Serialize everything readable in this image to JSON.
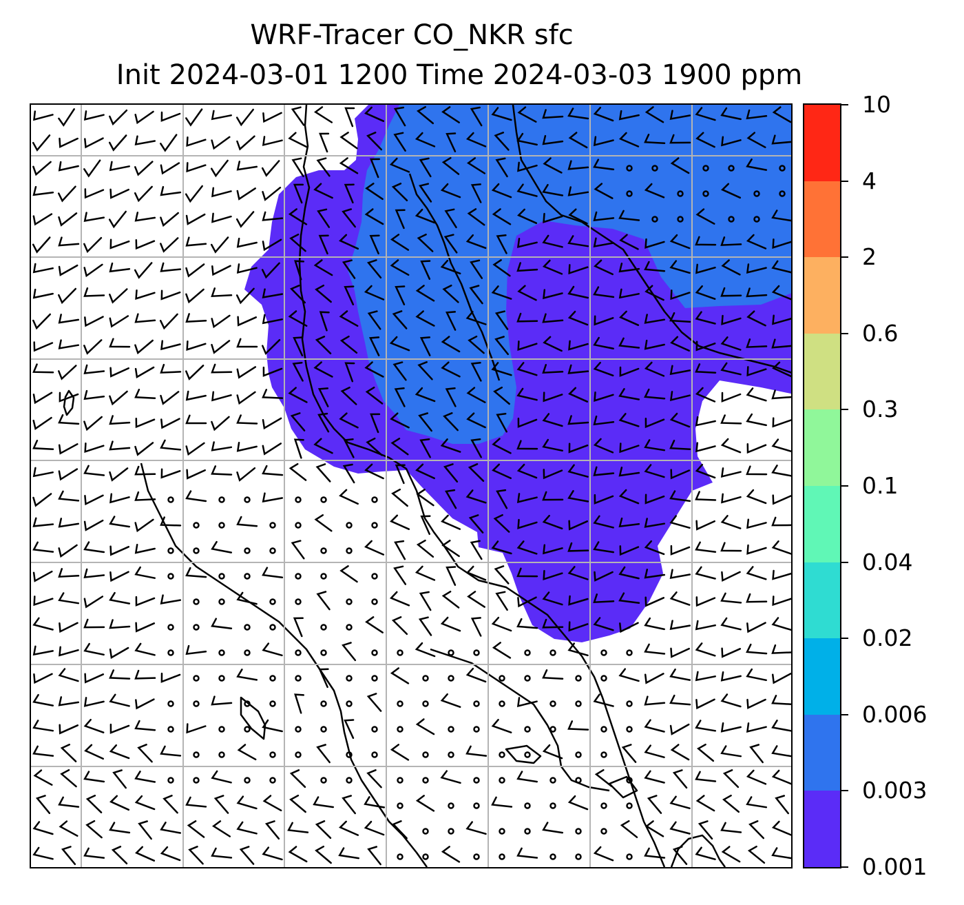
{
  "title": {
    "line1": "WRF-Tracer CO_NKR sfc",
    "line2": "Init 2024-03-01 1200 Time 2024-03-03 1900 ppm"
  },
  "map": {
    "variable": "CO_NKR",
    "level": "sfc",
    "units": "ppm",
    "init_time": "2024-03-01 1200",
    "valid_time": "2024-03-03 1900",
    "gridlines": true,
    "overlays": [
      "tracer-concentration-fill",
      "wind-barbs",
      "coastlines",
      "graticule"
    ],
    "plume_colors": {
      "low": "#5b2cf7",
      "mid": "#2f74ee"
    }
  },
  "colorbar": {
    "levels": [
      "0.001",
      "0.003",
      "0.006",
      "0.02",
      "0.04",
      "0.1",
      "0.3",
      "0.6",
      "2",
      "4",
      "10"
    ],
    "colors": [
      "#5b2cf7",
      "#2f74ee",
      "#00b0e8",
      "#2fdcd2",
      "#60f7b6",
      "#90f79a",
      "#cfe082",
      "#fdb060",
      "#ff7236",
      "#ff2715"
    ]
  }
}
